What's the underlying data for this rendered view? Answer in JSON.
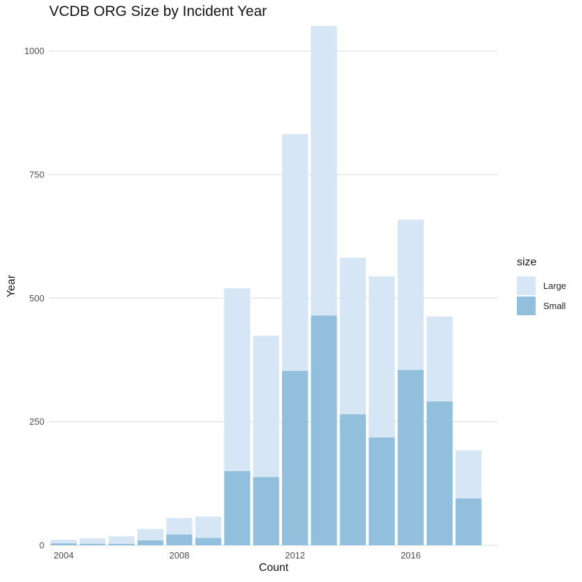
{
  "chart_data": {
    "type": "bar",
    "stacked": true,
    "title": "VCDB ORG Size by Incident Year",
    "xlabel": "Count",
    "ylabel": "Year",
    "x": [
      2004,
      2005,
      2006,
      2007,
      2008,
      2009,
      2010,
      2011,
      2012,
      2013,
      2014,
      2015,
      2016,
      2017,
      2018
    ],
    "series": [
      {
        "name": "Small",
        "color": "#92bfdb",
        "values": [
          4,
          3,
          3,
          10,
          22,
          15,
          150,
          138,
          353,
          465,
          265,
          218,
          355,
          291,
          95
        ]
      },
      {
        "name": "Large",
        "color": "#d6e6f4",
        "values": [
          7,
          11,
          15,
          23,
          33,
          43,
          370,
          286,
          479,
          586,
          317,
          326,
          304,
          172,
          97
        ]
      }
    ],
    "ylim": [
      0,
      1050
    ],
    "xlim": [
      2003.5,
      2019.0
    ],
    "y_ticks": [
      0,
      250,
      500,
      750,
      1000
    ],
    "x_ticks": [
      2004,
      2008,
      2012,
      2016
    ],
    "grid": true,
    "legend": {
      "title": "size",
      "position": "right",
      "entries": [
        "Large",
        "Small"
      ]
    }
  }
}
